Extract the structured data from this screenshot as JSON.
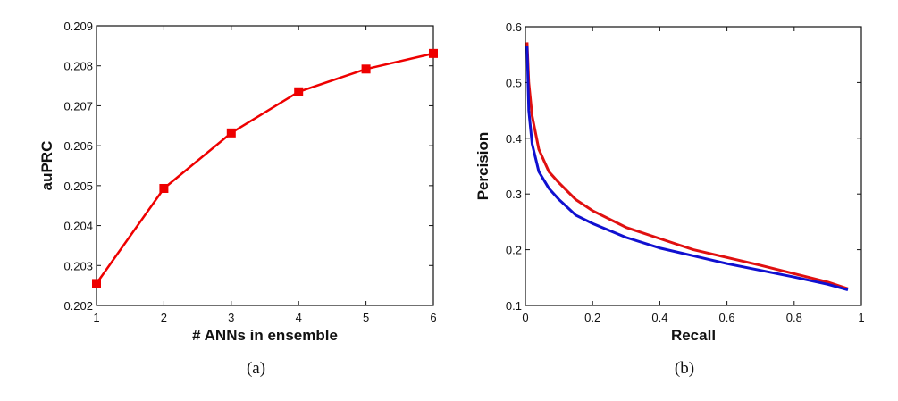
{
  "chart_data": [
    {
      "type": "line",
      "caption": "(a)",
      "xlabel": "# ANNs in ensemble",
      "ylabel": "auPRC",
      "xlim": [
        1,
        6
      ],
      "ylim": [
        0.202,
        0.209
      ],
      "xticks": [
        "1",
        "2",
        "3",
        "4",
        "5",
        "6"
      ],
      "yticks": [
        "0.202",
        "0.203",
        "0.204",
        "0.205",
        "0.206",
        "0.207",
        "0.208",
        "0.209"
      ],
      "grid": false,
      "series": [
        {
          "name": "auPRC",
          "color": "#ee0000",
          "marker": "square",
          "x": [
            1,
            2,
            3,
            4,
            5,
            6
          ],
          "y": [
            0.20255,
            0.20493,
            0.20632,
            0.20735,
            0.20792,
            0.20831
          ]
        }
      ]
    },
    {
      "type": "line",
      "caption": "(b)",
      "xlabel": "Recall",
      "ylabel": "Percision",
      "xlim": [
        0,
        1
      ],
      "ylim": [
        0.1,
        0.6
      ],
      "xticks": [
        "0",
        "0.2",
        "0.4",
        "0.6",
        "0.8",
        "1"
      ],
      "yticks": [
        "0.1",
        "0.2",
        "0.3",
        "0.4",
        "0.5",
        "0.6"
      ],
      "grid": false,
      "series": [
        {
          "name": "red curve",
          "color": "#e01010",
          "x": [
            0.005,
            0.01,
            0.02,
            0.04,
            0.07,
            0.1,
            0.15,
            0.2,
            0.3,
            0.4,
            0.5,
            0.6,
            0.7,
            0.8,
            0.9,
            0.96
          ],
          "y": [
            0.572,
            0.5,
            0.44,
            0.38,
            0.34,
            0.32,
            0.29,
            0.27,
            0.24,
            0.22,
            0.2,
            0.186,
            0.172,
            0.157,
            0.142,
            0.13
          ]
        },
        {
          "name": "blue curve",
          "color": "#1010d0",
          "x": [
            0.005,
            0.01,
            0.02,
            0.04,
            0.07,
            0.1,
            0.15,
            0.2,
            0.3,
            0.4,
            0.5,
            0.6,
            0.7,
            0.8,
            0.9,
            0.96
          ],
          "y": [
            0.565,
            0.45,
            0.39,
            0.34,
            0.31,
            0.29,
            0.262,
            0.247,
            0.222,
            0.203,
            0.189,
            0.175,
            0.163,
            0.151,
            0.138,
            0.128
          ]
        }
      ]
    }
  ]
}
